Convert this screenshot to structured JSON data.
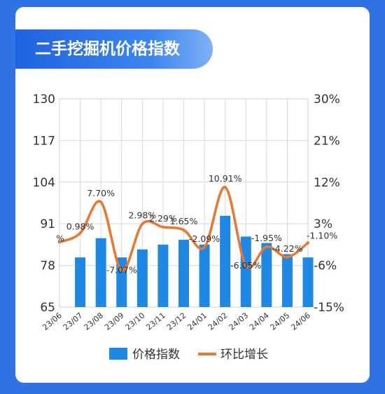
{
  "title": "二手挖掘机价格指数",
  "chart_data": {
    "type": "bar+line",
    "categories": [
      "23/06",
      "23/07",
      "23/08",
      "23/09",
      "23/10",
      "23/11",
      "23/12",
      "24/01",
      "24/02",
      "24/03",
      "24/04",
      "24/05",
      "24/06"
    ],
    "left_axis": {
      "min": 65,
      "max": 130,
      "ticks": [
        "65",
        "78",
        "91",
        "104",
        "117",
        "130"
      ]
    },
    "right_axis": {
      "min": -15,
      "max": 30,
      "ticks": [
        "-15%",
        "-6%",
        "3%",
        "12%",
        "21%",
        "30%"
      ]
    },
    "series": [
      {
        "name": "价格指数",
        "type": "bar",
        "axis": "left",
        "color": "#1e88e5",
        "values": [
          null,
          80.5,
          86.5,
          80.5,
          83.0,
          84.5,
          86.0,
          84.5,
          93.5,
          87.0,
          85.0,
          81.5,
          80.5
        ]
      },
      {
        "name": "环比增长",
        "type": "line",
        "axis": "right",
        "color": "#e8782f",
        "values": [
          -0.98,
          0.98,
          7.7,
          -7.07,
          2.98,
          2.29,
          1.65,
          -2.09,
          10.91,
          -6.05,
          -1.95,
          -4.22,
          -1.1
        ],
        "labels": [
          "%",
          "0.98%",
          "7.70%",
          "-7.07%",
          "2.98%",
          "2.29%",
          "1.65%",
          "-2.09%",
          "10.91%",
          "-6.05%",
          "-1.95%",
          "-4.22%",
          "-1.10%"
        ]
      }
    ],
    "grid": true,
    "legend": "bottom"
  }
}
